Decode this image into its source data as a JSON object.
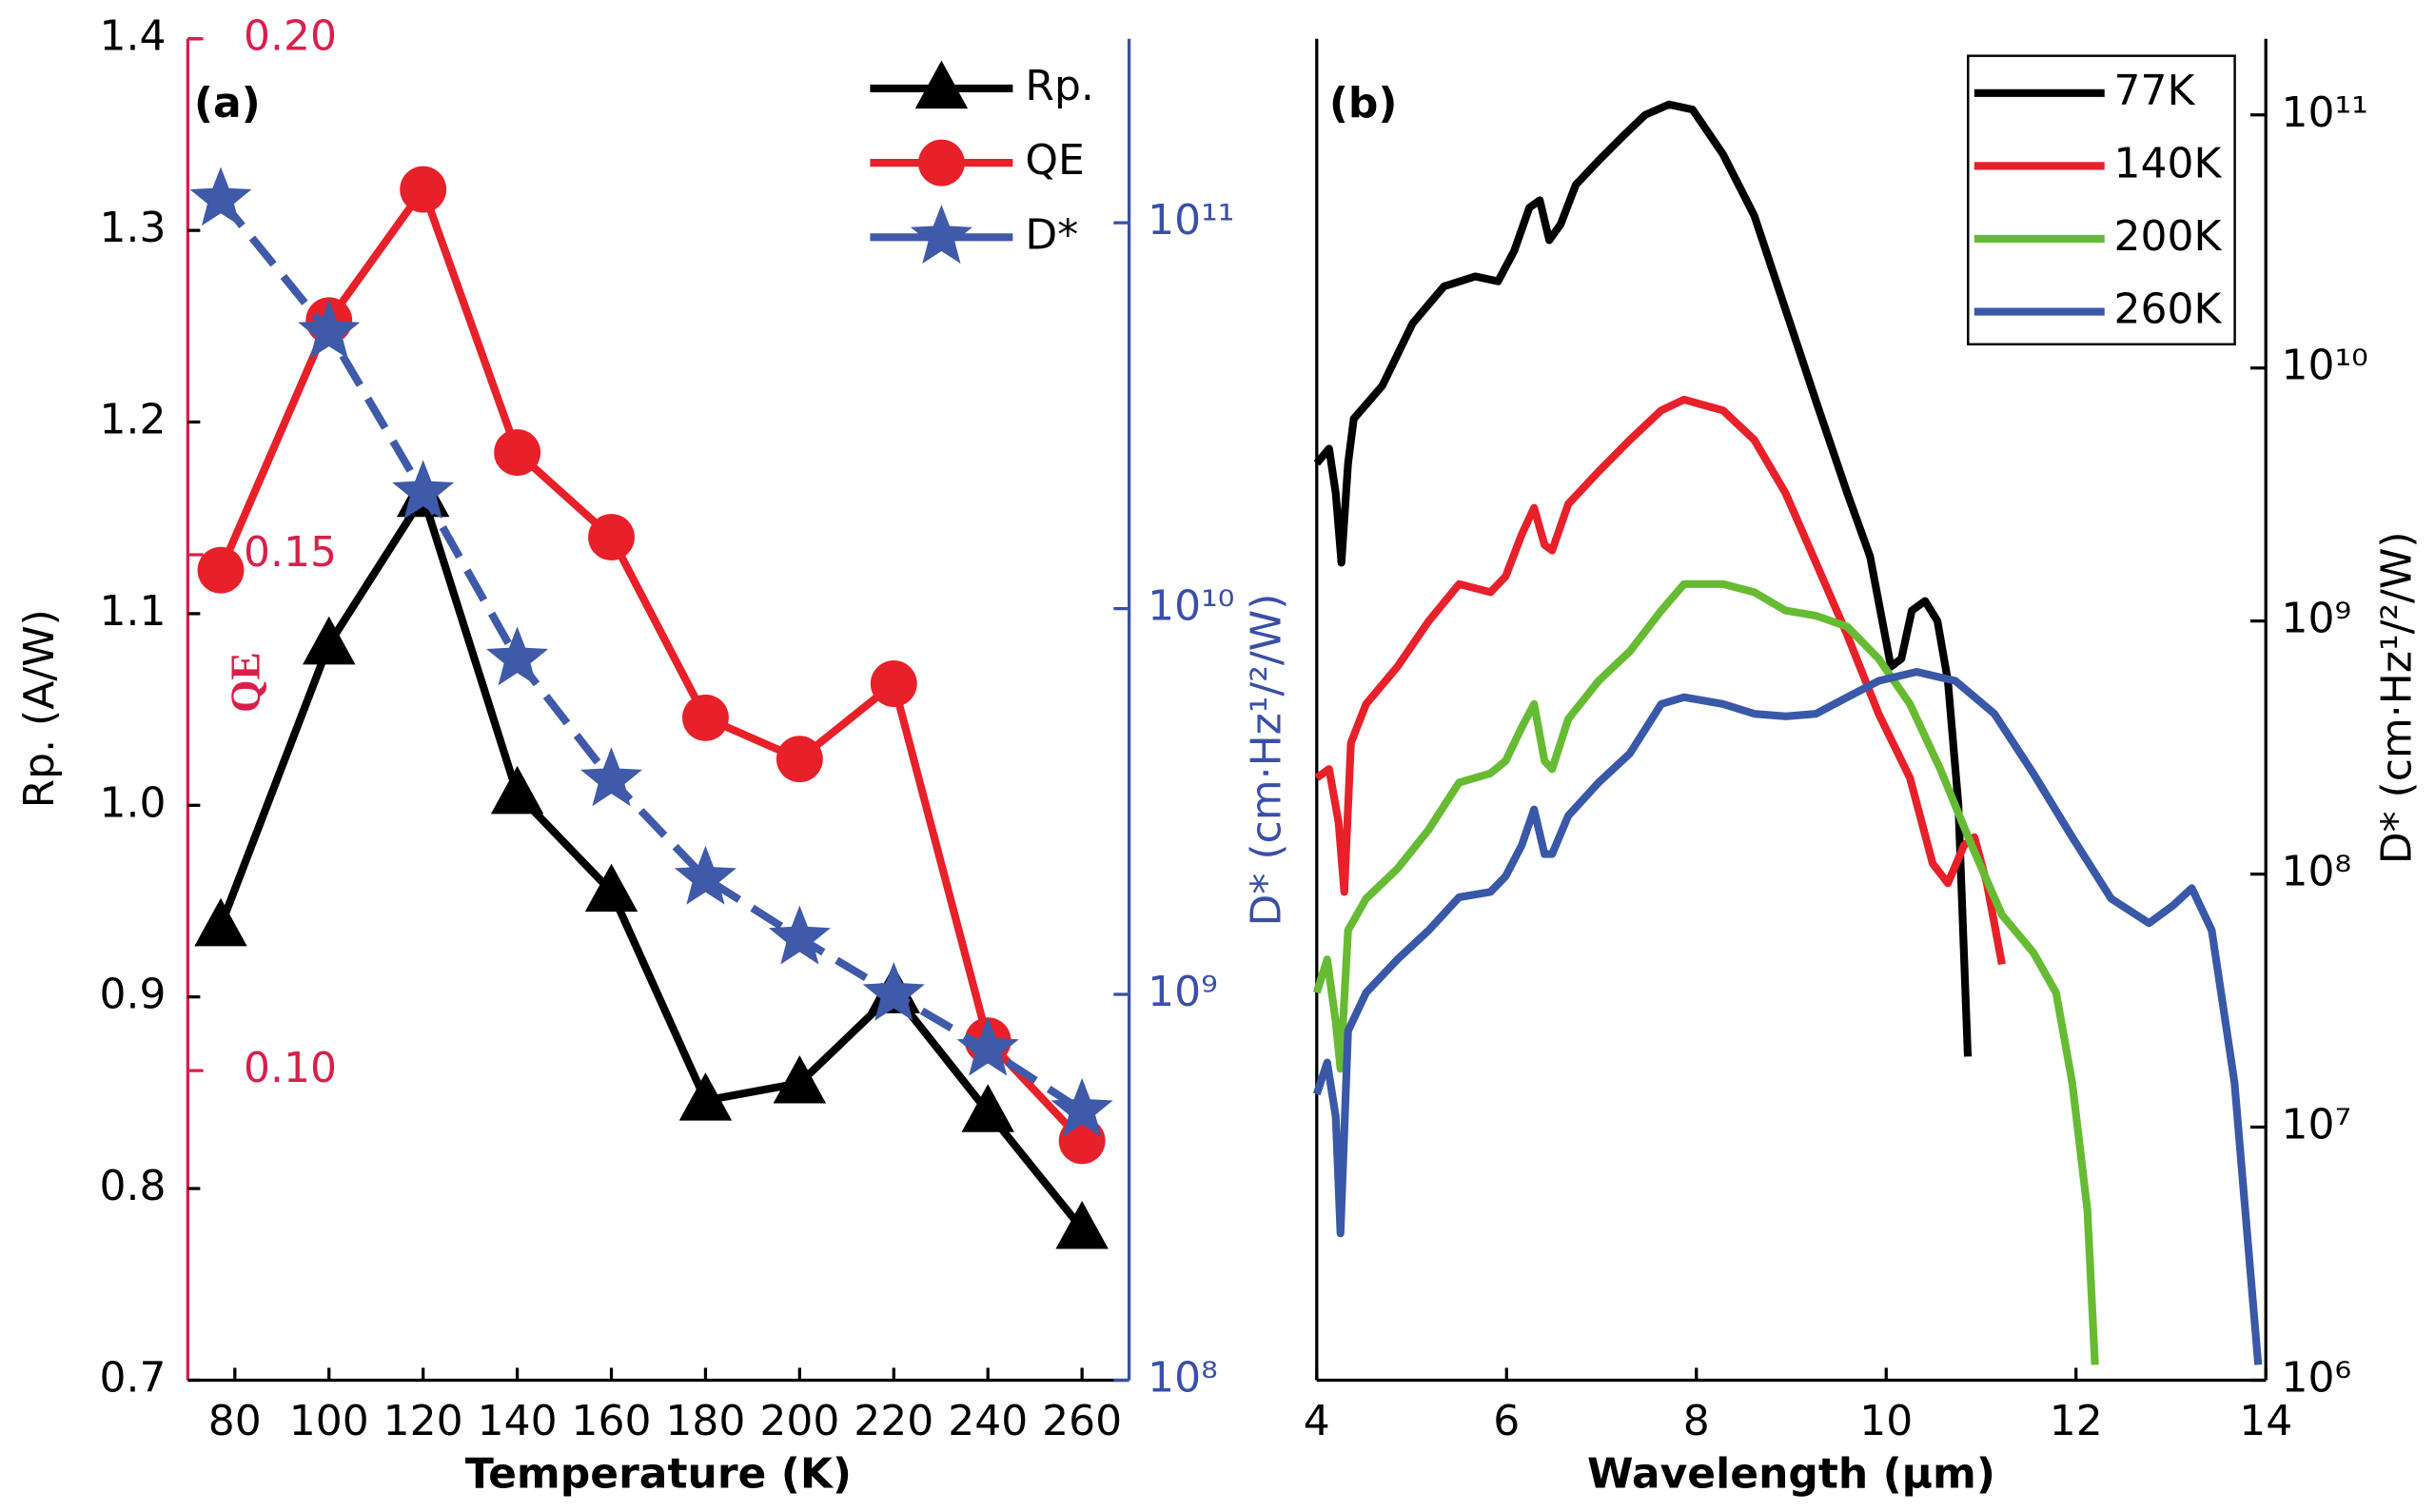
{
  "chart_data": [
    {
      "type": "line",
      "panel_label": "(a)",
      "xlabel": "Temperature (K)",
      "x": [
        77,
        100,
        120,
        140,
        160,
        180,
        200,
        220,
        240,
        260
      ],
      "xlim": [
        70,
        270
      ],
      "xticks": [
        80,
        100,
        120,
        140,
        160,
        180,
        200,
        220,
        240,
        260
      ],
      "ylabel": "Rp. (A/W)",
      "ylim": [
        0.7,
        1.4
      ],
      "yticks": [
        0.7,
        0.8,
        0.9,
        {
          "value": 1,
          "label": "1.0"
        },
        1.1,
        1.2,
        1.3,
        1.4
      ],
      "y2label": "QE",
      "y2lim": [
        0.07,
        0.2
      ],
      "y2ticks": [
        {
          "value": 0.1,
          "label": "0.10"
        },
        0.15,
        {
          "value": 0.2,
          "label": "0.20"
        }
      ],
      "y3label": "D* (cm·Hz¹/²/W)",
      "y3lim": [
        100000000.0,
        300000000000.0
      ],
      "y3_log": true,
      "y3ticks": [
        {
          "value": 100000000.0,
          "label": "10⁸"
        },
        {
          "value": 1000000000.0,
          "label": "10⁹"
        },
        {
          "value": 10000000000.0,
          "label": "10¹⁰"
        },
        {
          "value": 100000000000.0,
          "label": "10¹¹"
        }
      ],
      "legend": "upper right",
      "series": [
        {
          "name": "Rp.",
          "color": "#000000",
          "marker": "triangle",
          "axis": "y",
          "values": [
            0.937,
            1.084,
            1.161,
            1.006,
            0.955,
            0.846,
            0.855,
            0.902,
            0.84,
            0.779
          ]
        },
        {
          "name": "QE",
          "color": "#e8202a",
          "marker": "circle",
          "axis": "y2",
          "values": [
            0.1485,
            0.1727,
            0.1854,
            0.1599,
            0.1517,
            0.1342,
            0.1302,
            0.1375,
            0.1029,
            0.0932
          ]
        },
        {
          "name": "D*",
          "color": "#3f5aa8",
          "marker": "star",
          "axis": "y3",
          "values": [
            115000000000.0,
            52000000000.0,
            20000000000.0,
            7400000000.0,
            3600000000.0,
            2000000000.0,
            1400000000.0,
            1000000000.0,
            720000000.0,
            500000000.0
          ]
        }
      ]
    },
    {
      "type": "line",
      "panel_label": "(b)",
      "xlabel": "Wavelength (μm)",
      "xlim": [
        4,
        14
      ],
      "xticks": [
        4,
        6,
        8,
        10,
        12,
        14
      ],
      "ylabel": "D* (cm·Hz¹/²/W)",
      "ylim": [
        1000000.0,
        200000000000.0
      ],
      "log_y": true,
      "yticks": [
        {
          "value": 1000000.0,
          "label": "10⁶"
        },
        {
          "value": 10000000.0,
          "label": "10⁷"
        },
        {
          "value": 100000000.0,
          "label": "10⁸"
        },
        {
          "value": 1000000000.0,
          "label": "10⁹"
        },
        {
          "value": 10000000000.0,
          "label": "10¹⁰"
        },
        {
          "value": 100000000000.0,
          "label": "10¹¹"
        }
      ],
      "legend": "upper right",
      "series": [
        {
          "name": "77K",
          "color": "#000000",
          "x": [
            4.0,
            4.13,
            4.2,
            4.26,
            4.33,
            4.39,
            4.69,
            5.01,
            5.34,
            5.67,
            5.91,
            6.08,
            6.24,
            6.35,
            6.45,
            6.57,
            6.73,
            6.97,
            7.22,
            7.46,
            7.71,
            7.96,
            8.28,
            8.61,
            8.94,
            9.26,
            9.59,
            9.83,
            10.05,
            10.16,
            10.27,
            10.41,
            10.54,
            10.65,
            10.76,
            10.86
          ],
          "values": [
            4200000000.0,
            4800000000.0,
            3200000000.0,
            1700000000.0,
            4200000000.0,
            6300000000.0,
            8500000000.0,
            15000000000.0,
            21000000000.0,
            23000000000.0,
            22000000000.0,
            29000000000.0,
            43000000000.0,
            46000000000.0,
            32000000000.0,
            37000000000.0,
            53000000000.0,
            66000000000.0,
            82000000000.0,
            100000000000.0,
            110000000000.0,
            105000000000.0,
            70000000000.0,
            40000000000.0,
            17000000000.0,
            7400000000.0,
            3200000000.0,
            1800000000.0,
            660000000.0,
            710000000.0,
            1100000000.0,
            1200000000.0,
            1000000000.0,
            580000000.0,
            190000000.0,
            19000000.0
          ]
        },
        {
          "name": "140K",
          "color": "#e8202a",
          "x": [
            4.0,
            4.13,
            4.23,
            4.29,
            4.36,
            4.52,
            4.85,
            5.18,
            5.5,
            5.83,
            5.99,
            6.16,
            6.29,
            6.4,
            6.48,
            6.65,
            6.97,
            7.3,
            7.63,
            7.87,
            8.28,
            8.61,
            8.94,
            9.26,
            9.59,
            9.92,
            10.25,
            10.49,
            10.65,
            10.82,
            10.93,
            11.06,
            11.22
          ],
          "values": [
            240000000.0,
            260000000.0,
            160000000.0,
            85000000.0,
            330000000.0,
            470000000.0,
            660000000.0,
            1000000000.0,
            1400000000.0,
            1300000000.0,
            1500000000.0,
            2200000000.0,
            2800000000.0,
            2000000000.0,
            1900000000.0,
            2900000000.0,
            3900000000.0,
            5200000000.0,
            6800000000.0,
            7500000000.0,
            6800000000.0,
            5200000000.0,
            3200000000.0,
            1700000000.0,
            880000000.0,
            430000000.0,
            240000000.0,
            110000000.0,
            92000000.0,
            130000000.0,
            140000000.0,
            92000000.0,
            44000000.0
          ]
        },
        {
          "name": "200K",
          "color": "#66bb33",
          "x": [
            4.0,
            4.11,
            4.2,
            4.25,
            4.33,
            4.52,
            4.85,
            5.18,
            5.5,
            5.83,
            5.99,
            6.16,
            6.29,
            6.4,
            6.48,
            6.65,
            6.97,
            7.3,
            7.63,
            7.87,
            8.28,
            8.61,
            8.94,
            9.26,
            9.59,
            9.92,
            10.25,
            10.57,
            10.9,
            11.22,
            11.55,
            11.79,
            11.96,
            12.12,
            12.2
          ],
          "values": [
            34000000.0,
            46000000.0,
            26000000.0,
            17000000.0,
            60000000.0,
            80000000.0,
            105000000.0,
            150000000.0,
            230000000.0,
            250000000.0,
            280000000.0,
            380000000.0,
            470000000.0,
            280000000.0,
            260000000.0,
            410000000.0,
            580000000.0,
            760000000.0,
            1100000000.0,
            1400000000.0,
            1400000000.0,
            1300000000.0,
            1100000000.0,
            1050000000.0,
            950000000.0,
            710000000.0,
            470000000.0,
            260000000.0,
            130000000.0,
            69000000.0,
            49000000.0,
            34000000.0,
            15000000.0,
            4700000.0,
            1150000.0
          ]
        },
        {
          "name": "260K",
          "color": "#3a58a8",
          "x": [
            4.0,
            4.11,
            4.2,
            4.25,
            4.33,
            4.52,
            4.85,
            5.18,
            5.5,
            5.83,
            5.99,
            6.16,
            6.29,
            6.4,
            6.48,
            6.65,
            6.97,
            7.3,
            7.63,
            7.87,
            8.28,
            8.61,
            8.94,
            9.26,
            9.59,
            9.92,
            10.32,
            10.73,
            11.14,
            11.55,
            11.96,
            12.37,
            12.77,
            13.02,
            13.22,
            13.43,
            13.67,
            13.92
          ],
          "values": [
            13500000.0,
            18000000.0,
            11000000.0,
            3800000.0,
            24000000.0,
            34000000.0,
            46000000.0,
            60000000.0,
            81000000.0,
            85000000.0,
            98000000.0,
            130000000.0,
            180000000.0,
            120000000.0,
            120000000.0,
            170000000.0,
            230000000.0,
            300000000.0,
            470000000.0,
            500000000.0,
            470000000.0,
            430000000.0,
            420000000.0,
            430000000.0,
            500000000.0,
            580000000.0,
            630000000.0,
            580000000.0,
            430000000.0,
            250000000.0,
            140000000.0,
            80000000.0,
            64000000.0,
            75000000.0,
            88000000.0,
            60000000.0,
            15000000.0,
            1150000.0
          ]
        }
      ]
    }
  ]
}
